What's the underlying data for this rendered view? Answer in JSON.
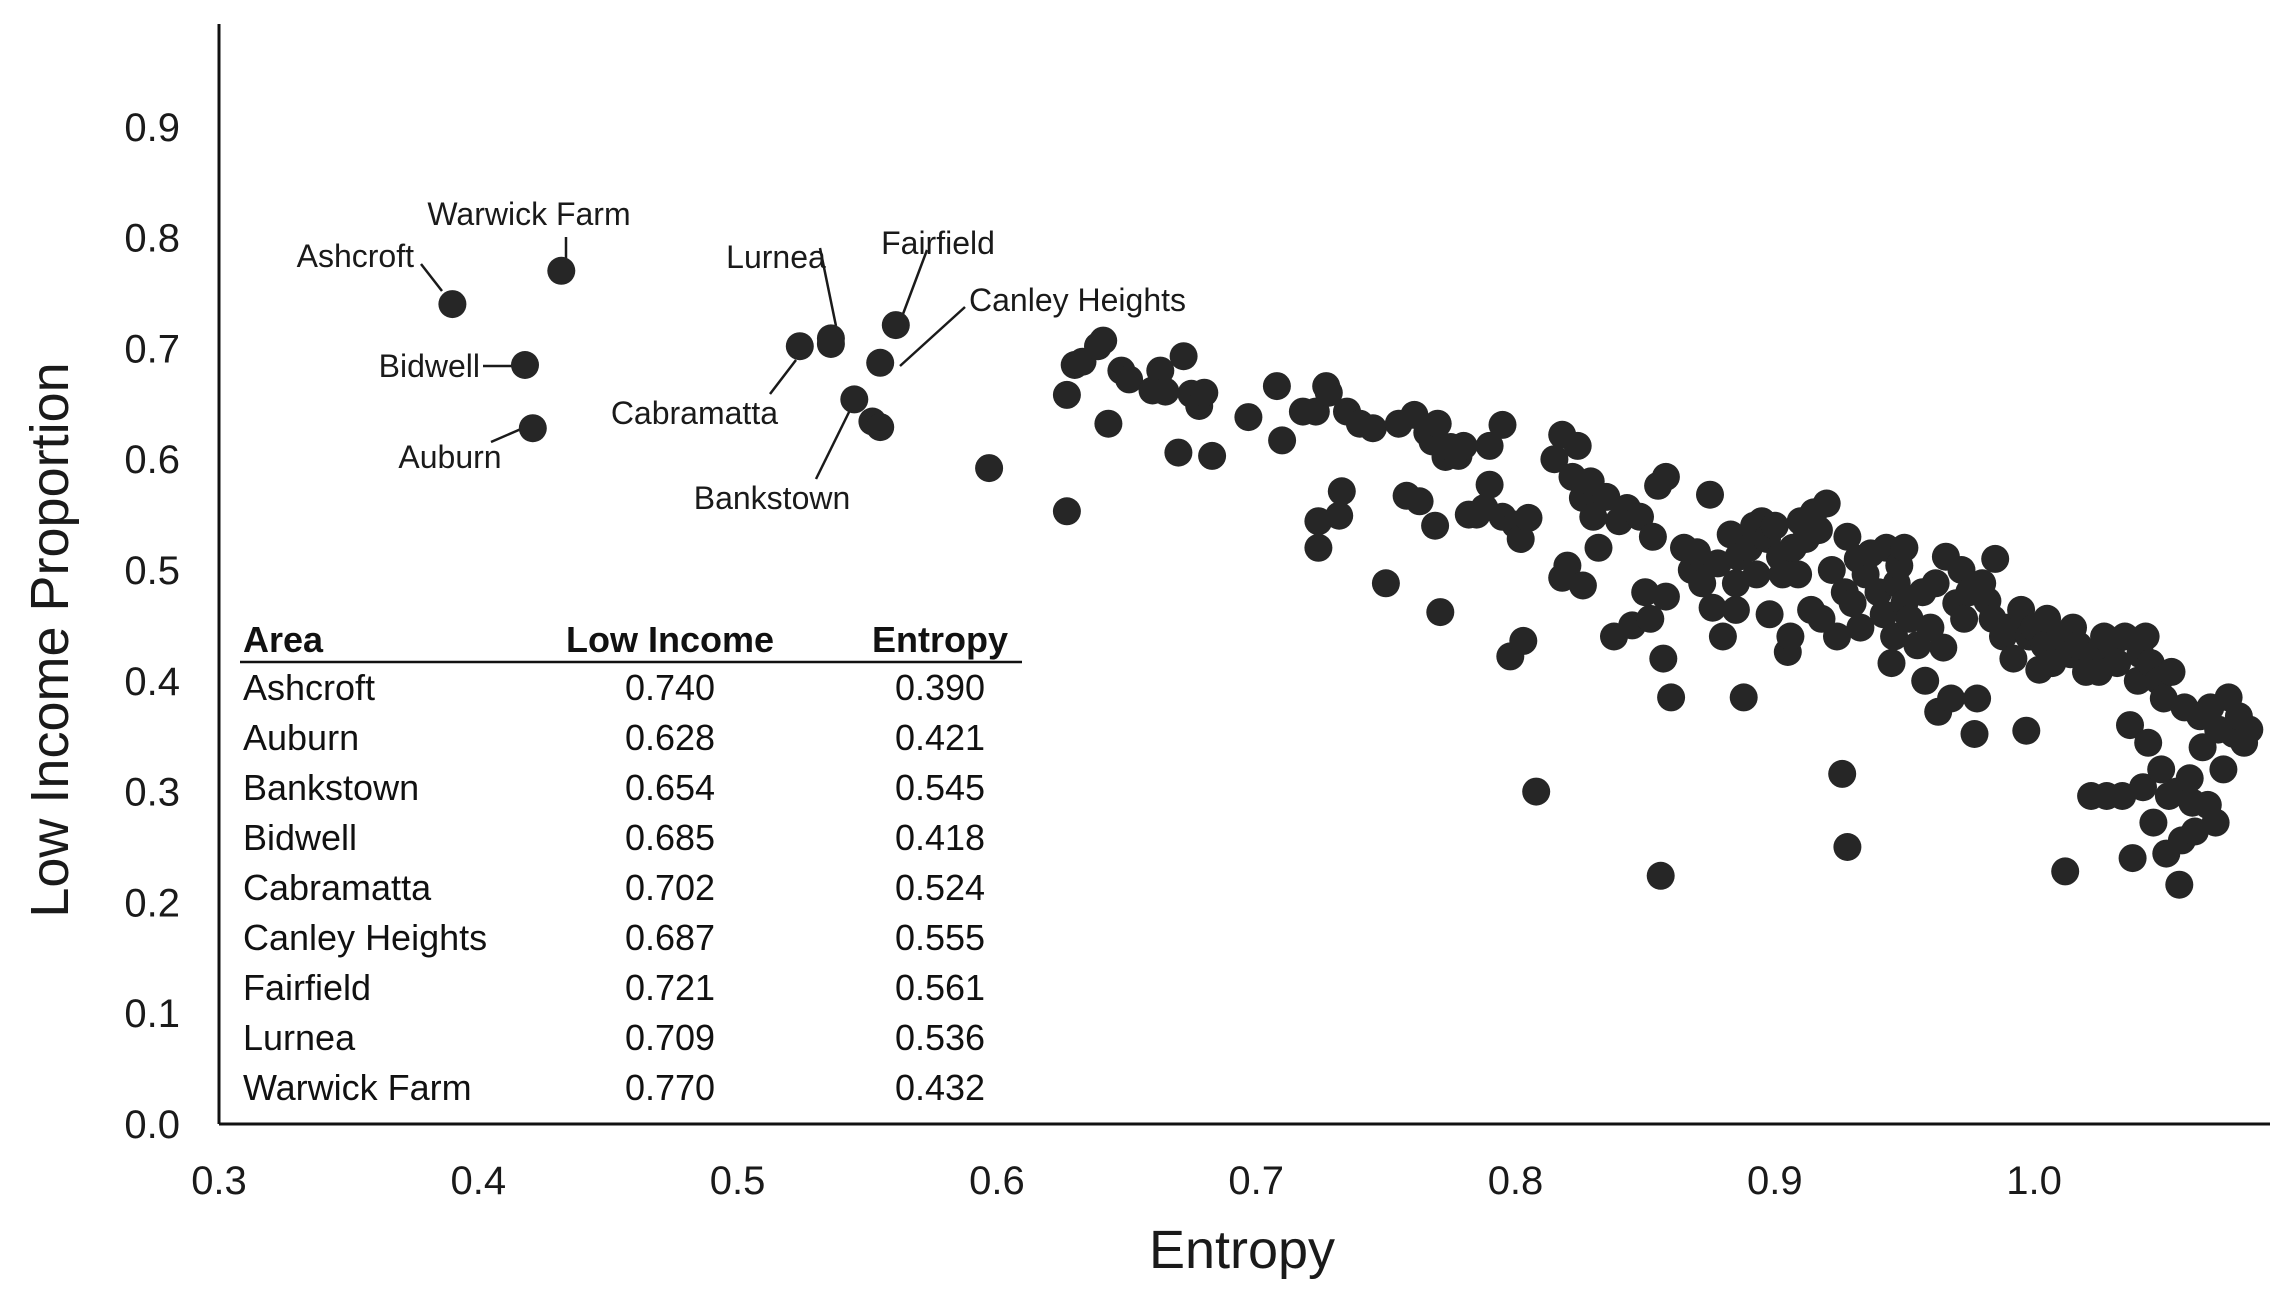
{
  "chart_data": {
    "type": "scatter",
    "title": "",
    "xlabel": "Entropy",
    "ylabel": "Low Income Proportion",
    "xlim": [
      0.3,
      1.09
    ],
    "ylim": [
      0.0,
      1.0
    ],
    "x_ticks": [
      "0.3",
      "0.4",
      "0.5",
      "0.6",
      "0.7",
      "0.8",
      "0.9",
      "1.0"
    ],
    "y_ticks": [
      "0.0",
      "0.1",
      "0.2",
      "0.3",
      "0.4",
      "0.5",
      "0.6",
      "0.7",
      "0.8",
      "0.9"
    ],
    "grid": false,
    "marker_color": "#262626",
    "labeled_points": [
      {
        "name": "Ashcroft",
        "x": 0.39,
        "y": 0.74
      },
      {
        "name": "Auburn",
        "x": 0.421,
        "y": 0.628
      },
      {
        "name": "Bankstown",
        "x": 0.545,
        "y": 0.654
      },
      {
        "name": "Bidwell",
        "x": 0.418,
        "y": 0.685
      },
      {
        "name": "Cabramatta",
        "x": 0.524,
        "y": 0.702
      },
      {
        "name": "Canley Heights",
        "x": 0.555,
        "y": 0.687
      },
      {
        "name": "Fairfield",
        "x": 0.561,
        "y": 0.721
      },
      {
        "name": "Lurnea",
        "x": 0.536,
        "y": 0.709
      },
      {
        "name": "Warwick Farm",
        "x": 0.432,
        "y": 0.77
      }
    ],
    "points": [
      [
        0.536,
        0.704
      ],
      [
        0.552,
        0.634
      ],
      [
        0.555,
        0.629
      ],
      [
        0.597,
        0.592
      ],
      [
        0.627,
        0.553
      ],
      [
        0.627,
        0.658
      ],
      [
        0.63,
        0.685
      ],
      [
        0.633,
        0.688
      ],
      [
        0.639,
        0.702
      ],
      [
        0.641,
        0.707
      ],
      [
        0.643,
        0.632
      ],
      [
        0.648,
        0.68
      ],
      [
        0.651,
        0.672
      ],
      [
        0.66,
        0.662
      ],
      [
        0.663,
        0.68
      ],
      [
        0.665,
        0.661
      ],
      [
        0.67,
        0.606
      ],
      [
        0.672,
        0.693
      ],
      [
        0.675,
        0.659
      ],
      [
        0.678,
        0.648
      ],
      [
        0.68,
        0.66
      ],
      [
        0.683,
        0.603
      ],
      [
        0.697,
        0.638
      ],
      [
        0.708,
        0.666
      ],
      [
        0.71,
        0.617
      ],
      [
        0.718,
        0.643
      ],
      [
        0.723,
        0.643
      ],
      [
        0.724,
        0.52
      ],
      [
        0.724,
        0.544
      ],
      [
        0.727,
        0.666
      ],
      [
        0.728,
        0.66
      ],
      [
        0.732,
        0.549
      ],
      [
        0.733,
        0.571
      ],
      [
        0.735,
        0.643
      ],
      [
        0.74,
        0.632
      ],
      [
        0.745,
        0.628
      ],
      [
        0.75,
        0.488
      ],
      [
        0.755,
        0.632
      ],
      [
        0.758,
        0.567
      ],
      [
        0.761,
        0.64
      ],
      [
        0.763,
        0.562
      ],
      [
        0.766,
        0.624
      ],
      [
        0.768,
        0.616
      ],
      [
        0.769,
        0.54
      ],
      [
        0.77,
        0.632
      ],
      [
        0.771,
        0.462
      ],
      [
        0.773,
        0.602
      ],
      [
        0.775,
        0.611
      ],
      [
        0.778,
        0.603
      ],
      [
        0.78,
        0.612
      ],
      [
        0.782,
        0.55
      ],
      [
        0.785,
        0.55
      ],
      [
        0.788,
        0.556
      ],
      [
        0.79,
        0.577
      ],
      [
        0.79,
        0.612
      ],
      [
        0.795,
        0.548
      ],
      [
        0.795,
        0.631
      ],
      [
        0.798,
        0.422
      ],
      [
        0.8,
        0.541
      ],
      [
        0.802,
        0.528
      ],
      [
        0.803,
        0.436
      ],
      [
        0.805,
        0.547
      ],
      [
        0.808,
        0.3
      ],
      [
        0.815,
        0.6
      ],
      [
        0.818,
        0.622
      ],
      [
        0.818,
        0.493
      ],
      [
        0.82,
        0.504
      ],
      [
        0.822,
        0.584
      ],
      [
        0.824,
        0.612
      ],
      [
        0.826,
        0.565
      ],
      [
        0.826,
        0.486
      ],
      [
        0.829,
        0.58
      ],
      [
        0.83,
        0.548
      ],
      [
        0.832,
        0.52
      ],
      [
        0.835,
        0.566
      ],
      [
        0.838,
        0.44
      ],
      [
        0.84,
        0.544
      ],
      [
        0.843,
        0.556
      ],
      [
        0.845,
        0.45
      ],
      [
        0.848,
        0.548
      ],
      [
        0.85,
        0.48
      ],
      [
        0.852,
        0.456
      ],
      [
        0.853,
        0.53
      ],
      [
        0.855,
        0.576
      ],
      [
        0.856,
        0.224
      ],
      [
        0.857,
        0.42
      ],
      [
        0.858,
        0.476
      ],
      [
        0.858,
        0.584
      ],
      [
        0.86,
        0.385
      ],
      [
        0.865,
        0.52
      ],
      [
        0.868,
        0.5
      ],
      [
        0.87,
        0.516
      ],
      [
        0.872,
        0.488
      ],
      [
        0.875,
        0.568
      ],
      [
        0.876,
        0.466
      ],
      [
        0.878,
        0.506
      ],
      [
        0.88,
        0.44
      ],
      [
        0.883,
        0.532
      ],
      [
        0.885,
        0.464
      ],
      [
        0.885,
        0.488
      ],
      [
        0.886,
        0.512
      ],
      [
        0.888,
        0.385
      ],
      [
        0.89,
        0.52
      ],
      [
        0.892,
        0.54
      ],
      [
        0.893,
        0.496
      ],
      [
        0.895,
        0.544
      ],
      [
        0.897,
        0.528
      ],
      [
        0.898,
        0.46
      ],
      [
        0.9,
        0.54
      ],
      [
        0.902,
        0.512
      ],
      [
        0.903,
        0.496
      ],
      [
        0.905,
        0.426
      ],
      [
        0.906,
        0.44
      ],
      [
        0.907,
        0.52
      ],
      [
        0.909,
        0.496
      ],
      [
        0.91,
        0.544
      ],
      [
        0.912,
        0.528
      ],
      [
        0.914,
        0.464
      ],
      [
        0.915,
        0.552
      ],
      [
        0.917,
        0.536
      ],
      [
        0.918,
        0.456
      ],
      [
        0.92,
        0.56
      ],
      [
        0.922,
        0.5
      ],
      [
        0.924,
        0.44
      ],
      [
        0.926,
        0.316
      ],
      [
        0.927,
        0.48
      ],
      [
        0.928,
        0.53
      ],
      [
        0.928,
        0.25
      ],
      [
        0.93,
        0.47
      ],
      [
        0.932,
        0.51
      ],
      [
        0.933,
        0.448
      ],
      [
        0.935,
        0.496
      ],
      [
        0.937,
        0.515
      ],
      [
        0.94,
        0.48
      ],
      [
        0.942,
        0.46
      ],
      [
        0.943,
        0.52
      ],
      [
        0.945,
        0.416
      ],
      [
        0.946,
        0.44
      ],
      [
        0.947,
        0.488
      ],
      [
        0.948,
        0.504
      ],
      [
        0.95,
        0.52
      ],
      [
        0.95,
        0.47
      ],
      [
        0.952,
        0.456
      ],
      [
        0.955,
        0.432
      ],
      [
        0.957,
        0.48
      ],
      [
        0.958,
        0.4
      ],
      [
        0.96,
        0.448
      ],
      [
        0.962,
        0.488
      ],
      [
        0.963,
        0.372
      ],
      [
        0.965,
        0.43
      ],
      [
        0.966,
        0.512
      ],
      [
        0.968,
        0.384
      ],
      [
        0.97,
        0.47
      ],
      [
        0.972,
        0.5
      ],
      [
        0.973,
        0.456
      ],
      [
        0.975,
        0.48
      ],
      [
        0.977,
        0.352
      ],
      [
        0.978,
        0.384
      ],
      [
        0.98,
        0.488
      ],
      [
        0.982,
        0.472
      ],
      [
        0.984,
        0.456
      ],
      [
        0.985,
        0.51
      ],
      [
        0.988,
        0.44
      ],
      [
        0.99,
        0.448
      ],
      [
        0.992,
        0.42
      ],
      [
        0.995,
        0.464
      ],
      [
        0.997,
        0.355
      ],
      [
        0.998,
        0.44
      ],
      [
        1.0,
        0.448
      ],
      [
        1.002,
        0.41
      ],
      [
        1.004,
        0.432
      ],
      [
        1.005,
        0.456
      ],
      [
        1.007,
        0.416
      ],
      [
        1.01,
        0.44
      ],
      [
        1.012,
        0.228
      ],
      [
        1.014,
        0.424
      ],
      [
        1.015,
        0.448
      ],
      [
        1.017,
        0.432
      ],
      [
        1.02,
        0.408
      ],
      [
        1.022,
        0.296
      ],
      [
        1.024,
        0.424
      ],
      [
        1.025,
        0.408
      ],
      [
        1.027,
        0.44
      ],
      [
        1.028,
        0.296
      ],
      [
        1.03,
        0.432
      ],
      [
        1.032,
        0.416
      ],
      [
        1.034,
        0.296
      ],
      [
        1.035,
        0.44
      ],
      [
        1.037,
        0.36
      ],
      [
        1.038,
        0.24
      ],
      [
        1.04,
        0.4
      ],
      [
        1.041,
        0.424
      ],
      [
        1.042,
        0.304
      ],
      [
        1.043,
        0.44
      ],
      [
        1.044,
        0.344
      ],
      [
        1.045,
        0.416
      ],
      [
        1.046,
        0.272
      ],
      [
        1.048,
        0.4
      ],
      [
        1.049,
        0.32
      ],
      [
        1.05,
        0.384
      ],
      [
        1.051,
        0.244
      ],
      [
        1.052,
        0.296
      ],
      [
        1.053,
        0.408
      ],
      [
        1.055,
        0.3
      ],
      [
        1.056,
        0.216
      ],
      [
        1.057,
        0.256
      ],
      [
        1.058,
        0.376
      ],
      [
        1.06,
        0.312
      ],
      [
        1.061,
        0.29
      ],
      [
        1.062,
        0.264
      ],
      [
        1.064,
        0.368
      ],
      [
        1.065,
        0.34
      ],
      [
        1.067,
        0.288
      ],
      [
        1.068,
        0.376
      ],
      [
        1.07,
        0.272
      ],
      [
        1.071,
        0.356
      ],
      [
        1.073,
        0.32
      ],
      [
        1.075,
        0.385
      ],
      [
        1.077,
        0.352
      ],
      [
        1.079,
        0.368
      ],
      [
        1.081,
        0.344
      ],
      [
        1.083,
        0.356
      ]
    ]
  },
  "table": {
    "headers": [
      "Area",
      "Low Income",
      "Entropy"
    ],
    "rows": [
      [
        "Ashcroft",
        "0.740",
        "0.390"
      ],
      [
        "Auburn",
        "0.628",
        "0.421"
      ],
      [
        "Bankstown",
        "0.654",
        "0.545"
      ],
      [
        "Bidwell",
        "0.685",
        "0.418"
      ],
      [
        "Cabramatta",
        "0.702",
        "0.524"
      ],
      [
        "Canley Heights",
        "0.687",
        "0.555"
      ],
      [
        "Fairfield",
        "0.721",
        "0.561"
      ],
      [
        "Lurnea",
        "0.709",
        "0.536"
      ],
      [
        "Warwick Farm",
        "0.770",
        "0.432"
      ]
    ]
  }
}
